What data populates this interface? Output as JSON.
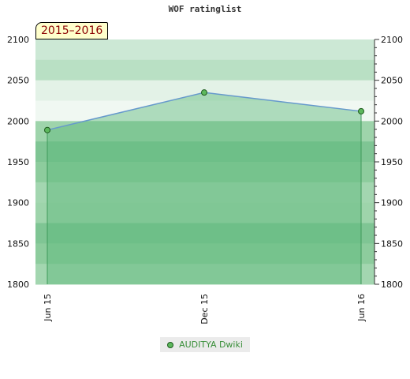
{
  "chart_data": {
    "type": "area",
    "title": "WOF ratinglist",
    "season_label": "2015–2016",
    "ylim": [
      1800,
      2100
    ],
    "yticks": [
      1800,
      1850,
      1900,
      1950,
      2000,
      2050,
      2100
    ],
    "x_ticks": [
      {
        "label": "Jun 15",
        "date": "2015-06-01"
      },
      {
        "label": "Dec 15",
        "date": "2015-12-01"
      },
      {
        "label": "Jun 16",
        "date": "2016-06-01"
      }
    ],
    "series": [
      {
        "name": "AUDITYA Dwiki",
        "points": [
          {
            "x": "2015-06-01",
            "y": 1989
          },
          {
            "x": "2015-12-01",
            "y": 2035
          },
          {
            "x": "2016-06-01",
            "y": 2012
          }
        ]
      }
    ],
    "band_colors": [
      "#9ed4ab",
      "#8dcc9d",
      "#7fc594",
      "#a3d6b0",
      "#f0f8f2",
      "#e3f2e7",
      "#b9e0c4",
      "#cce8d5"
    ],
    "fill_color": "#5cb87a",
    "line_color": "#6699cc",
    "marker_color": "#5db85d"
  },
  "legend": {
    "label": "AUDITYA Dwiki"
  }
}
